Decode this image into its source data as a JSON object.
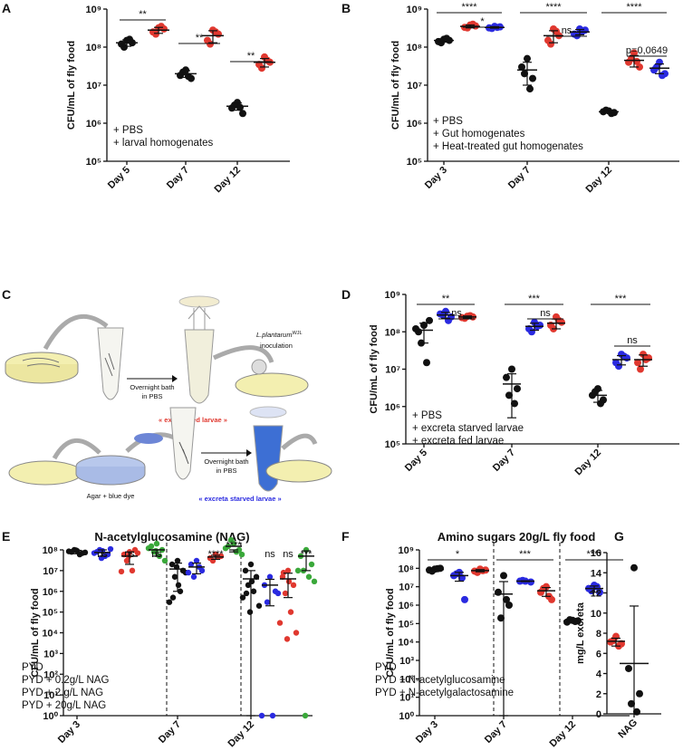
{
  "diagram": {
    "label": "C",
    "species": "L.plantarum",
    "strain": "WJL",
    "inoculation": "inoculation",
    "bath1": "Overnight bath",
    "pbs1": "in PBS",
    "fed": "« excreta fed larvae »",
    "agar": "Agar + blue dye",
    "bath2": "Overnight bath",
    "pbs2": "in PBS",
    "starved": "« excreta starved larvae »"
  },
  "chart_data": [
    {
      "type": "dot",
      "label": "A",
      "ylabel": "CFU/mL of fly food",
      "log": true,
      "ylim": [
        100000.0,
        1000000000.0
      ],
      "yticks": [
        {
          "value": 100000.0,
          "label": "10⁵"
        },
        {
          "value": 1000000.0,
          "label": "10⁶"
        },
        {
          "value": 10000000.0,
          "label": "10⁷"
        },
        {
          "value": 100000000.0,
          "label": "10⁸"
        },
        {
          "value": 1000000000.0,
          "label": "10⁹"
        }
      ],
      "categories": [
        "Day 5",
        "Day 7",
        "Day 12"
      ],
      "series": [
        {
          "name": "+ PBS",
          "color": "#111111",
          "values": [
            [
              150000000.0,
              120000000.0,
              130000000.0,
              100000000.0,
              160000000.0
            ],
            [
              25000000.0,
              18000000.0,
              15000000.0,
              22000000.0,
              17000000.0
            ],
            [
              3500000.0,
              2500000.0,
              1800000.0,
              3000000.0,
              2600000.0
            ]
          ],
          "mean": [
            130000000.0,
            20000000.0,
            2800000.0
          ],
          "sd": [
            25000000.0,
            4000000.0,
            600000.0
          ]
        },
        {
          "name": "+ larval homogenates",
          "color": "#e0382f",
          "values": [
            [
              320000000.0,
              250000000.0,
              300000000.0,
              220000000.0,
              350000000.0
            ],
            [
              280000000.0,
              150000000.0,
              220000000.0,
              120000000.0,
              250000000.0
            ],
            [
              55000000.0,
              35000000.0,
              40000000.0,
              28000000.0,
              45000000.0
            ]
          ],
          "mean": [
            280000000.0,
            200000000.0,
            40000000.0
          ],
          "sd": [
            50000000.0,
            70000000.0,
            10000000.0
          ]
        }
      ],
      "annotations": [
        "**",
        "**",
        "**"
      ]
    },
    {
      "type": "dot",
      "label": "B",
      "ylabel": "CFU/mL of fly food",
      "log": true,
      "ylim": [
        100000.0,
        1000000000.0
      ],
      "yticks": [
        {
          "value": 100000.0,
          "label": "10⁵"
        },
        {
          "value": 1000000.0,
          "label": "10⁶"
        },
        {
          "value": 10000000.0,
          "label": "10⁷"
        },
        {
          "value": 100000000.0,
          "label": "10⁸"
        },
        {
          "value": 1000000000.0,
          "label": "10⁹"
        }
      ],
      "categories": [
        "Day 3",
        "Day 7",
        "Day 12"
      ],
      "series": [
        {
          "name": "+ PBS",
          "color": "#111111",
          "values": [
            [
              160000000.0,
              140000000.0,
              150000000.0,
              130000000.0,
              170000000.0
            ],
            [
              50000000.0,
              30000000.0,
              15000000.0,
              20000000.0,
              8000000.0
            ],
            [
              2100000.0,
              2000000.0,
              1900000.0,
              2200000.0,
              1800000.0
            ]
          ],
          "mean": [
            150000000.0,
            25000000.0,
            2000000.0
          ],
          "sd": [
            15000000.0,
            15000000.0,
            150000.0
          ]
        },
        {
          "name": "+ Gut homogenates",
          "color": "#e0382f",
          "values": [
            [
              380000000.0,
              330000000.0,
              360000000.0,
              320000000.0,
              400000000.0
            ],
            [
              300000000.0,
              150000000.0,
              200000000.0,
              120000000.0,
              260000000.0
            ],
            [
              70000000.0,
              40000000.0,
              30000000.0,
              50000000.0,
              42000000.0
            ]
          ],
          "mean": [
            350000000.0,
            200000000.0,
            45000000.0
          ],
          "sd": [
            30000000.0,
            70000000.0,
            15000000.0
          ]
        },
        {
          "name": "+ Heat-treated gut homogenates",
          "color": "#2a2ae0",
          "values": [
            [
              350000000.0,
              320000000.0,
              340000000.0,
              310000000.0,
              330000000.0
            ],
            [
              300000000.0,
              220000000.0,
              280000000.0,
              200000000.0,
              260000000.0
            ],
            [
              40000000.0,
              25000000.0,
              20000000.0,
              30000000.0,
              18000000.0
            ]
          ],
          "mean": [
            330000000.0,
            250000000.0,
            28000000.0
          ],
          "sd": [
            15000000.0,
            40000000.0,
            8000000.0
          ]
        }
      ],
      "annotations": [
        "****",
        "*",
        "****",
        "ns",
        "****",
        "p=0,0649"
      ]
    },
    {
      "type": "dot",
      "label": "D",
      "ylabel": "CFU/mL of fly food",
      "log": true,
      "ylim": [
        100000.0,
        1000000000.0
      ],
      "yticks": [
        {
          "value": 100000.0,
          "label": "10⁵"
        },
        {
          "value": 1000000.0,
          "label": "10⁶"
        },
        {
          "value": 10000000.0,
          "label": "10⁷"
        },
        {
          "value": 100000000.0,
          "label": "10⁸"
        },
        {
          "value": 1000000000.0,
          "label": "10⁹"
        }
      ],
      "categories": [
        "Day 5",
        "Day 7",
        "Day 12"
      ],
      "series": [
        {
          "name": "+ PBS",
          "color": "#111111",
          "values": [
            [
              150000000.0,
              100000000.0,
              200000000.0,
              50000000.0,
              15000000.0,
              120000000.0
            ],
            [
              10000000.0,
              6000000.0,
              3000000.0,
              2000000.0,
              1200000.0
            ],
            [
              3000000.0,
              2000000.0,
              1500000.0,
              2500000.0,
              1200000.0
            ]
          ],
          "mean": [
            110000000.0,
            4000000.0,
            2000000.0
          ],
          "sd": [
            60000000.0,
            3500000.0,
            700000.0
          ]
        },
        {
          "name": "+ excreta starved larvae",
          "color": "#2a2ae0",
          "values": [
            [
              350000000.0,
              300000000.0,
              250000000.0,
              280000000.0,
              200000000.0
            ],
            [
              180000000.0,
              120000000.0,
              150000000.0,
              100000000.0,
              140000000.0
            ],
            [
              25000000.0,
              15000000.0,
              20000000.0,
              12000000.0,
              22000000.0
            ]
          ],
          "mean": [
            280000000.0,
            140000000.0,
            18000000.0
          ],
          "sd": [
            50000000.0,
            30000000.0,
            5000000.0
          ]
        },
        {
          "name": "+ excreta fed larvae",
          "color": "#e0382f",
          "values": [
            [
              260000000.0,
              240000000.0,
              250000000.0,
              230000000.0,
              270000000.0
            ],
            [
              250000000.0,
              150000000.0,
              180000000.0,
              120000000.0,
              200000000.0
            ],
            [
              25000000.0,
              15000000.0,
              20000000.0,
              10000000.0,
              18000000.0
            ]
          ],
          "mean": [
            250000000.0,
            170000000.0,
            18000000.0
          ],
          "sd": [
            15000000.0,
            50000000.0,
            6000000.0
          ]
        }
      ],
      "annotations": [
        "**",
        "ns",
        "***",
        "ns",
        "***",
        "ns"
      ]
    },
    {
      "type": "dot",
      "label": "E",
      "title": "N-acetylglucosamine (NAG)",
      "ylabel": "CFU/mL of fly food",
      "log": true,
      "ylim": [
        1,
        100000000.0
      ],
      "yticks": [
        {
          "value": 1,
          "label": "10⁰"
        },
        {
          "value": 10,
          "label": "10¹"
        },
        {
          "value": 100,
          "label": "10²"
        },
        {
          "value": 1000,
          "label": "10³"
        },
        {
          "value": 10000.0,
          "label": "10⁴"
        },
        {
          "value": 100000.0,
          "label": "10⁵"
        },
        {
          "value": 1000000.0,
          "label": "10⁶"
        },
        {
          "value": 10000000.0,
          "label": "10⁷"
        },
        {
          "value": 100000000.0,
          "label": "10⁸"
        }
      ],
      "categories": [
        "Day 3",
        "Day 7",
        "Day 12"
      ],
      "series": [
        {
          "name": "PYD",
          "color": "#111111",
          "values": [
            [
              90000000.0,
              80000000.0,
              70000000.0,
              100000000.0,
              60000000.0,
              85000000.0,
              75000000.0,
              95000000.0
            ],
            [
              30000000.0,
              20000000.0,
              10000000.0,
              5000000.0,
              1000000.0,
              300000.0,
              8000000.0,
              15000000.0,
              2000000.0,
              500000.0
            ],
            [
              20000000.0,
              10000000.0,
              5000000.0,
              2000000.0,
              1000000.0,
              500000.0,
              200000.0,
              100000.0,
              3000000.0,
              800000.0
            ]
          ],
          "mean": [
            80000000.0,
            12000000.0,
            4000000.0
          ],
          "sd": [
            15000000.0,
            11000000.0,
            6000000.0
          ]
        },
        {
          "name": "PYD + 0.2g/L NAG",
          "color": "#2a2ae0",
          "values": [
            [
              90000000.0,
              80000000.0,
              60000000.0,
              100000000.0,
              50000000.0,
              70000000.0,
              110000000.0,
              40000000.0
            ],
            [
              30000000.0,
              20000000.0,
              10000000.0,
              5000000.0,
              15000000.0,
              8000000.0
            ],
            [
              5000000.0,
              2000000.0,
              1000000.0,
              300000.0,
              1,
              1,
              800000.0
            ]
          ],
          "mean": [
            75000000.0,
            15000000.0,
            2000000.0
          ],
          "sd": [
            25000000.0,
            8000000.0,
            1800000.0
          ]
        },
        {
          "name": "PYD + 2 g/L NAG",
          "color": "#e0382f",
          "values": [
            [
              80000000.0,
              60000000.0,
              100000000.0,
              30000000.0,
              10000000.0,
              9000000.0,
              70000000.0,
              50000000.0
            ],
            [
              60000000.0,
              40000000.0,
              50000000.0,
              30000000.0,
              45000000.0
            ],
            [
              10000000.0,
              5000000.0,
              2000000.0,
              800000.0,
              100000.0,
              30000.0,
              10000.0,
              5000.0,
              3000000.0,
              8000000.0
            ]
          ],
          "mean": [
            50000000.0,
            45000000.0,
            4000000.0
          ],
          "sd": [
            30000000.0,
            10000000.0,
            3500000.0
          ]
        },
        {
          "name": "PYD + 20g/L NAG",
          "color": "#3aa83a",
          "values": [
            [
              200000000.0,
              150000000.0,
              100000000.0,
              80000000.0,
              50000000.0,
              120000000.0,
              30000000.0,
              90000000.0
            ],
            [
              200000000.0,
              150000000.0,
              100000000.0,
              300000000.0,
              80000000.0,
              120000000.0,
              60000000.0
            ],
            [
              100000000.0,
              50000000.0,
              20000000.0,
              10000000.0,
              5000000.0,
              10000000.0,
              3000000.0,
              1
            ]
          ],
          "mean": [
            100000000.0,
            150000000.0,
            50000000.0
          ],
          "sd": [
            50000000.0,
            70000000.0,
            40000000.0
          ]
        }
      ],
      "annotations": [
        "ns",
        "ns",
        "ns",
        "****",
        "****",
        "ns",
        "ns",
        "***"
      ]
    },
    {
      "type": "dot",
      "label": "F",
      "title": "Amino sugars 20g/L fly food",
      "ylabel": "CFU/mL of fly food",
      "log": true,
      "ylim": [
        1,
        1000000000.0
      ],
      "yticks": [
        {
          "value": 1,
          "label": "10⁰"
        },
        {
          "value": 10,
          "label": "10¹"
        },
        {
          "value": 100,
          "label": "10²"
        },
        {
          "value": 1000,
          "label": "10³"
        },
        {
          "value": 10000.0,
          "label": "10⁴"
        },
        {
          "value": 100000.0,
          "label": "10⁵"
        },
        {
          "value": 1000000.0,
          "label": "10⁶"
        },
        {
          "value": 10000000.0,
          "label": "10⁷"
        },
        {
          "value": 100000000.0,
          "label": "10⁸"
        },
        {
          "value": 1000000000.0,
          "label": "10⁹"
        }
      ],
      "categories": [
        "Day 3",
        "Day 7",
        "Day 12"
      ],
      "series": [
        {
          "name": "PYD",
          "color": "#111111",
          "values": [
            [
              90000000.0,
              80000000.0,
              100000000.0,
              70000000.0,
              95000000.0
            ],
            [
              40000000.0,
              5000000.0,
              1000000.0,
              200000.0,
              2000000.0
            ],
            [
              150000.0,
              120000.0,
              140000.0,
              160000.0,
              130000.0
            ]
          ],
          "mean": [
            85000000.0,
            4000000.0,
            140000.0
          ],
          "sd": [
            10000000.0,
            15000000.0,
            15000.0
          ]
        },
        {
          "name": "PYD + N-acetylglucosamine",
          "color": "#2a2ae0",
          "values": [
            [
              60000000.0,
              40000000.0,
              2000000.0,
              50000000.0,
              30000000.0
            ],
            [
              20000000.0,
              20000000.0,
              18000000.0,
              22000000.0
            ],
            [
              12000000.0,
              8000000.0,
              5000000.0,
              6000000.0,
              10000000.0
            ]
          ],
          "mean": [
            40000000.0,
            20000000.0,
            8000000.0
          ],
          "sd": [
            20000000.0,
            1000000.0,
            3000000.0
          ]
        },
        {
          "name": "PYD + N-acetylgalactosamine",
          "color": "#e0382f",
          "values": [
            [
              90000000.0,
              70000000.0,
              80000000.0,
              60000000.0,
              75000000.0
            ],
            [
              10000000.0,
              5000000.0,
              2000000.0,
              8000000.0,
              3000000.0
            ],
            [
              20000.0,
              10000.0,
              8000.0,
              12000.0,
              6000.0
            ]
          ],
          "mean": [
            75000000.0,
            6000000.0,
            11000.0
          ],
          "sd": [
            10000000.0,
            3000000.0,
            5000.0
          ]
        }
      ],
      "annotations": [
        "*",
        "***",
        "****"
      ]
    },
    {
      "type": "dot",
      "label": "G",
      "ylabel": "mg/L excreta",
      "log": false,
      "ylim": [
        0,
        16
      ],
      "yticks": [
        0,
        2,
        4,
        6,
        8,
        10,
        12,
        14,
        16
      ],
      "categories": [
        "NAG"
      ],
      "series": [
        {
          "color": "#111111",
          "values": [
            [
              14.5,
              4.5,
              2,
              1,
              0.2
            ]
          ],
          "mean": [
            5
          ],
          "sd": [
            5.7
          ]
        }
      ]
    }
  ]
}
